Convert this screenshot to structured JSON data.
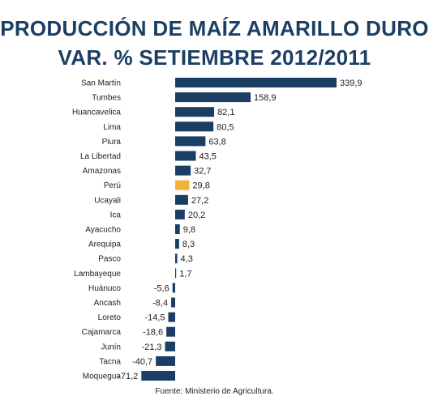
{
  "title_line1": "PRODUCCIÓN DE MAÍZ AMARILLO DURO",
  "title_line2": "VAR. % SETIEMBRE 2012/2011",
  "source": "Fuente: Ministerio de Agricultura.",
  "colors": {
    "bar": "#1b3e63",
    "highlight": "#f5b335",
    "title": "#1b3e63"
  },
  "chart_data": {
    "type": "bar",
    "orientation": "horizontal",
    "title": "PRODUCCIÓN DE MAÍZ AMARILLO DURO VAR. % SETIEMBRE 2012/2011",
    "categories": [
      "San Martín",
      "Tumbes",
      "Huancavelica",
      "Lima",
      "Piura",
      "La Libertad",
      "Amazonas",
      "Perú",
      "Ucayali",
      "Ica",
      "Ayacucho",
      "Arequipa",
      "Pasco",
      "Lambayeque",
      "Huánuco",
      "Ancash",
      "Loreto",
      "Cajamarca",
      "Junín",
      "Tacna",
      "Moquegua"
    ],
    "values": [
      339.9,
      158.9,
      82.1,
      80.5,
      63.8,
      43.5,
      32.7,
      29.8,
      27.2,
      20.2,
      9.8,
      8.3,
      4.3,
      1.7,
      -5.6,
      -8.4,
      -14.5,
      -18.6,
      -21.3,
      -40.7,
      -71.2
    ],
    "value_labels": [
      "339,9",
      "158,9",
      "82,1",
      "80,5",
      "63,8",
      "43,5",
      "32,7",
      "29,8",
      "27,2",
      "20,2",
      "9,8",
      "8,3",
      "4,3",
      "1,7",
      "-5,6",
      "-8,4",
      "-14,5",
      "-18,6",
      "-21,3",
      "-40,7",
      "-71,2"
    ],
    "highlight": "Perú",
    "xlim": [
      -71.2,
      339.9
    ]
  }
}
